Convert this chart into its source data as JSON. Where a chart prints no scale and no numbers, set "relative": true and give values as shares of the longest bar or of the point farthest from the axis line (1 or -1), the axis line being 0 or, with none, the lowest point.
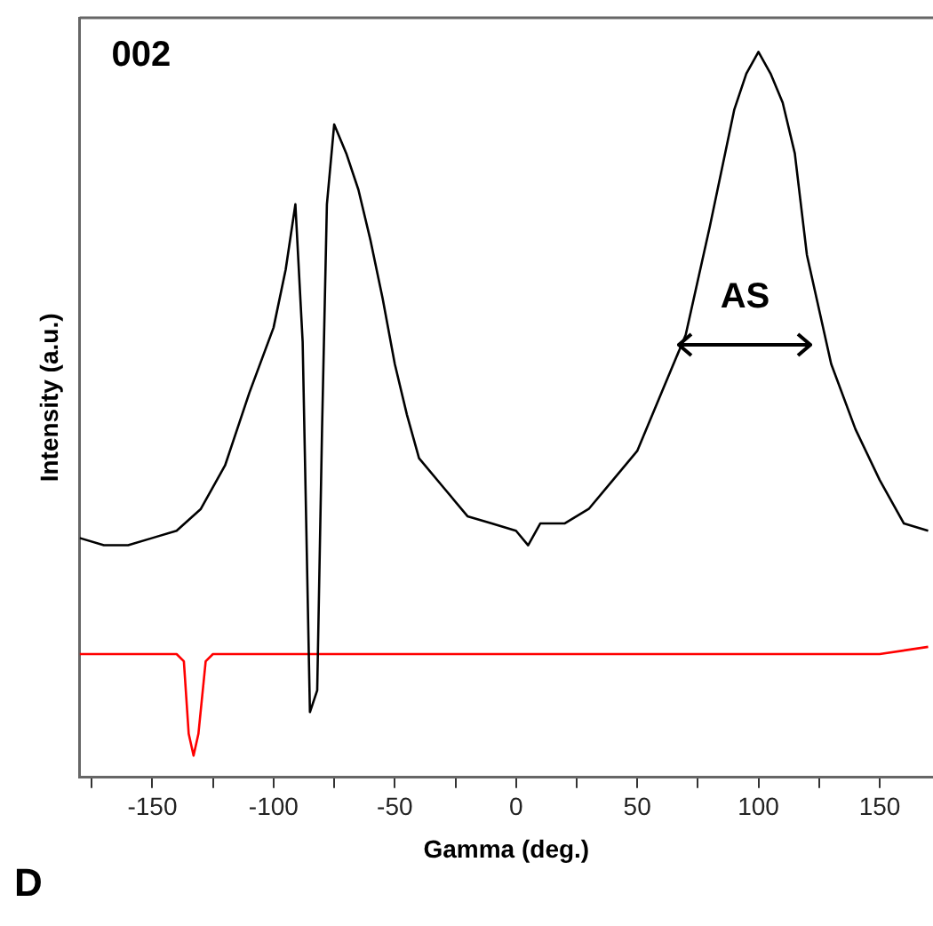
{
  "chart_data": {
    "type": "line",
    "xlabel": "Gamma (deg.)",
    "ylabel": "Intensity (a.u.)",
    "relative": true,
    "grid": false,
    "legend": false,
    "marker": "none",
    "line_style": "solid",
    "annotations": [
      "002",
      "D",
      "AS"
    ],
    "xlim": [
      -180,
      172
    ],
    "xticks": [
      {
        "value": -175,
        "label": null
      },
      -150,
      {
        "value": -125,
        "label": null
      },
      -100,
      {
        "value": -75,
        "label": null
      },
      -50,
      {
        "value": -25,
        "label": null
      },
      0,
      {
        "value": 25,
        "label": null
      },
      50,
      {
        "value": 75,
        "label": null
      },
      100,
      {
        "value": 125,
        "label": null
      },
      150
    ],
    "series": [
      {
        "color": "#000000",
        "x": [
          -180,
          -170,
          -160,
          -150,
          -140,
          -130,
          -120,
          -110,
          -100,
          -95,
          -91,
          -88,
          -85,
          -82,
          -80,
          -78,
          -75,
          -70,
          -65,
          -60,
          -55,
          -50,
          -45,
          -40,
          -30,
          -20,
          -10,
          0,
          5,
          10,
          20,
          30,
          40,
          50,
          60,
          70,
          80,
          90,
          95,
          100,
          105,
          110,
          115,
          120,
          130,
          140,
          150,
          160,
          170
        ],
        "values": [
          0.33,
          0.32,
          0.32,
          0.33,
          0.34,
          0.37,
          0.43,
          0.53,
          0.62,
          0.7,
          0.79,
          0.6,
          0.09,
          0.12,
          0.48,
          0.79,
          0.9,
          0.86,
          0.81,
          0.74,
          0.66,
          0.57,
          0.5,
          0.44,
          0.4,
          0.36,
          0.35,
          0.34,
          0.32,
          0.35,
          0.35,
          0.37,
          0.41,
          0.45,
          0.53,
          0.61,
          0.76,
          0.92,
          0.97,
          1,
          0.97,
          0.93,
          0.86,
          0.72,
          0.57,
          0.48,
          0.41,
          0.35,
          0.34
        ]
      },
      {
        "color": "#ff0000",
        "x": [
          -180,
          -160,
          -140,
          -137,
          -135,
          -133,
          -131,
          -128,
          -125,
          -100,
          -50,
          0,
          50,
          100,
          150,
          170
        ],
        "values": [
          0.17,
          0.17,
          0.17,
          0.16,
          0.06,
          0.03,
          0.06,
          0.16,
          0.17,
          0.17,
          0.17,
          0.17,
          0.17,
          0.17,
          0.17,
          0.18
        ]
      }
    ]
  }
}
